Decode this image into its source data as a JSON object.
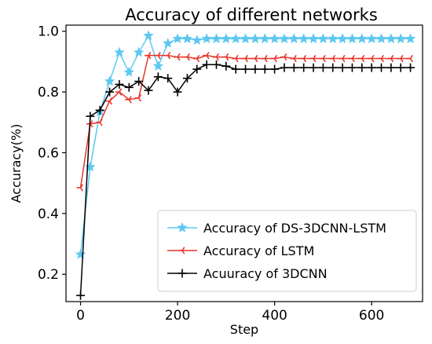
{
  "chart_data": {
    "type": "line",
    "title": "Accuracy of different networks",
    "xlabel": "Step",
    "ylabel": "Accuracy(%)",
    "xlim": [
      -30,
      705
    ],
    "ylim": [
      0.11,
      1.02
    ],
    "xticks": [
      "0",
      "200",
      "400",
      "600"
    ],
    "yticks": [
      "0.2",
      "0.4",
      "0.6",
      "0.8",
      "1.0"
    ],
    "grid": false,
    "legend_position": "lower-right",
    "series": [
      {
        "name": "Accuracy of DS-3DCNN-LSTM",
        "color": "#5bc8f0",
        "marker": "star",
        "points": [
          [
            0,
            0.265
          ],
          [
            20,
            0.553
          ],
          [
            40,
            0.735
          ],
          [
            60,
            0.835
          ],
          [
            80,
            0.93
          ],
          [
            100,
            0.865
          ],
          [
            120,
            0.93
          ],
          [
            140,
            0.985
          ],
          [
            160,
            0.885
          ],
          [
            180,
            0.96
          ],
          [
            200,
            0.975
          ],
          [
            220,
            0.975
          ],
          [
            240,
            0.97
          ],
          [
            260,
            0.975
          ],
          [
            280,
            0.975
          ],
          [
            300,
            0.975
          ],
          [
            320,
            0.975
          ],
          [
            340,
            0.975
          ],
          [
            360,
            0.975
          ],
          [
            380,
            0.975
          ],
          [
            400,
            0.975
          ],
          [
            420,
            0.975
          ],
          [
            440,
            0.975
          ],
          [
            460,
            0.975
          ],
          [
            480,
            0.975
          ],
          [
            500,
            0.975
          ],
          [
            520,
            0.975
          ],
          [
            540,
            0.975
          ],
          [
            560,
            0.975
          ],
          [
            580,
            0.975
          ],
          [
            600,
            0.975
          ],
          [
            620,
            0.975
          ],
          [
            640,
            0.975
          ],
          [
            660,
            0.975
          ],
          [
            680,
            0.975
          ]
        ]
      },
      {
        "name": "Accuracy of LSTM",
        "color": "#e8352a",
        "marker": "tri-left",
        "points": [
          [
            0,
            0.485
          ],
          [
            20,
            0.695
          ],
          [
            40,
            0.7
          ],
          [
            60,
            0.77
          ],
          [
            80,
            0.8
          ],
          [
            100,
            0.775
          ],
          [
            120,
            0.78
          ],
          [
            140,
            0.92
          ],
          [
            160,
            0.92
          ],
          [
            180,
            0.92
          ],
          [
            200,
            0.915
          ],
          [
            220,
            0.915
          ],
          [
            240,
            0.91
          ],
          [
            260,
            0.92
          ],
          [
            280,
            0.915
          ],
          [
            300,
            0.915
          ],
          [
            320,
            0.91
          ],
          [
            340,
            0.91
          ],
          [
            360,
            0.91
          ],
          [
            380,
            0.91
          ],
          [
            400,
            0.91
          ],
          [
            420,
            0.915
          ],
          [
            440,
            0.91
          ],
          [
            460,
            0.91
          ],
          [
            480,
            0.91
          ],
          [
            500,
            0.91
          ],
          [
            520,
            0.91
          ],
          [
            540,
            0.91
          ],
          [
            560,
            0.91
          ],
          [
            580,
            0.91
          ],
          [
            600,
            0.91
          ],
          [
            620,
            0.91
          ],
          [
            640,
            0.91
          ],
          [
            660,
            0.91
          ],
          [
            680,
            0.91
          ]
        ]
      },
      {
        "name": "Acuuracy of 3DCNN",
        "color": "#000000",
        "marker": "plus",
        "points": [
          [
            0,
            0.13
          ],
          [
            20,
            0.72
          ],
          [
            40,
            0.74
          ],
          [
            60,
            0.8
          ],
          [
            80,
            0.825
          ],
          [
            100,
            0.815
          ],
          [
            120,
            0.835
          ],
          [
            140,
            0.805
          ],
          [
            160,
            0.85
          ],
          [
            180,
            0.845
          ],
          [
            200,
            0.8
          ],
          [
            220,
            0.845
          ],
          [
            240,
            0.875
          ],
          [
            260,
            0.89
          ],
          [
            280,
            0.89
          ],
          [
            300,
            0.885
          ],
          [
            320,
            0.875
          ],
          [
            340,
            0.875
          ],
          [
            360,
            0.875
          ],
          [
            380,
            0.875
          ],
          [
            400,
            0.875
          ],
          [
            420,
            0.88
          ],
          [
            440,
            0.88
          ],
          [
            460,
            0.88
          ],
          [
            480,
            0.88
          ],
          [
            500,
            0.88
          ],
          [
            520,
            0.88
          ],
          [
            540,
            0.88
          ],
          [
            560,
            0.88
          ],
          [
            580,
            0.88
          ],
          [
            600,
            0.88
          ],
          [
            620,
            0.88
          ],
          [
            640,
            0.88
          ],
          [
            660,
            0.88
          ],
          [
            680,
            0.88
          ]
        ]
      }
    ]
  }
}
